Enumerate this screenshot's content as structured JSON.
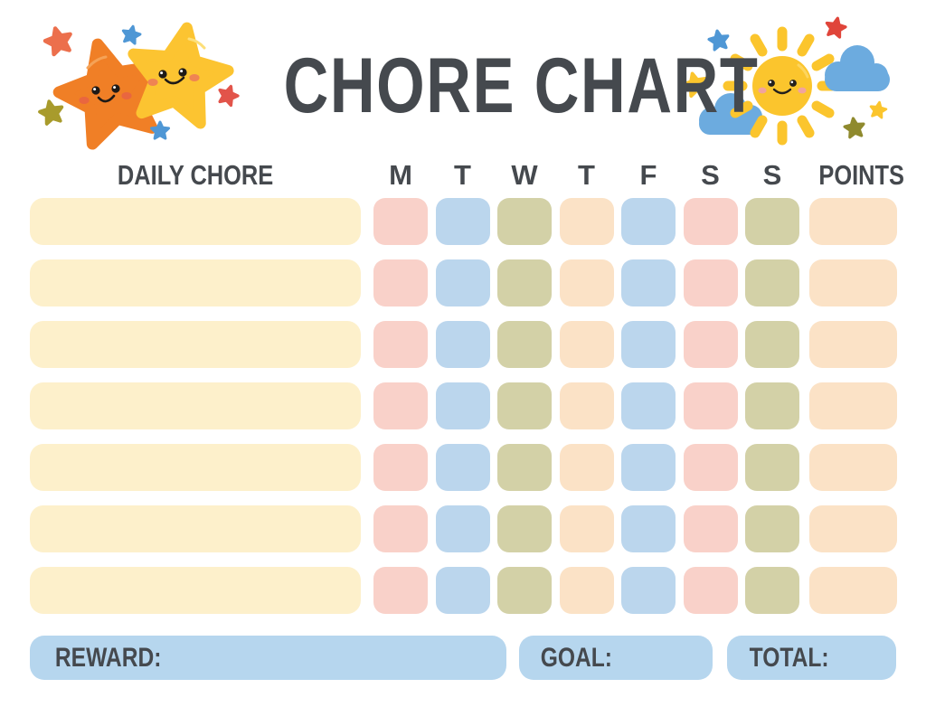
{
  "title": "CHORE CHART",
  "header": {
    "daily_chore_label": "DAILY CHORE",
    "days": [
      "M",
      "T",
      "W",
      "T",
      "F",
      "S",
      "S"
    ],
    "points_label": "POINTS"
  },
  "grid": {
    "row_count": 7,
    "day_cell_colors": [
      "pink",
      "blue",
      "olive",
      "peach",
      "blue",
      "pink",
      "olive"
    ],
    "chore_cell_color": "cream",
    "points_cell_color": "peach",
    "cells_empty": true
  },
  "footer": {
    "reward_label": "REWARD:",
    "goal_label": "GOAL:",
    "total_label": "TOTAL:"
  },
  "colors": {
    "text": "#45494e",
    "pink": "#f9d1c9",
    "blue": "#bbd6ed",
    "olive": "#d3d1a7",
    "peach": "#fbe2c6",
    "cream": "#fdf0cb",
    "footer_blue": "#b6d6ee",
    "star_orange": "#f07f26",
    "star_yellow": "#fcc431",
    "sun_yellow": "#fbc52d",
    "cloud_blue": "#6cabdf",
    "accent_red": "#e0453a",
    "accent_salmon": "#ec6f4c",
    "accent_blue": "#4f97d5",
    "accent_olive": "#a89b2c",
    "accent_dark_olive": "#8f8a2e"
  },
  "illustrations": {
    "left_icon": "two-smiling-stars-icon",
    "right_icon": "smiling-sun-with-clouds-icon"
  }
}
